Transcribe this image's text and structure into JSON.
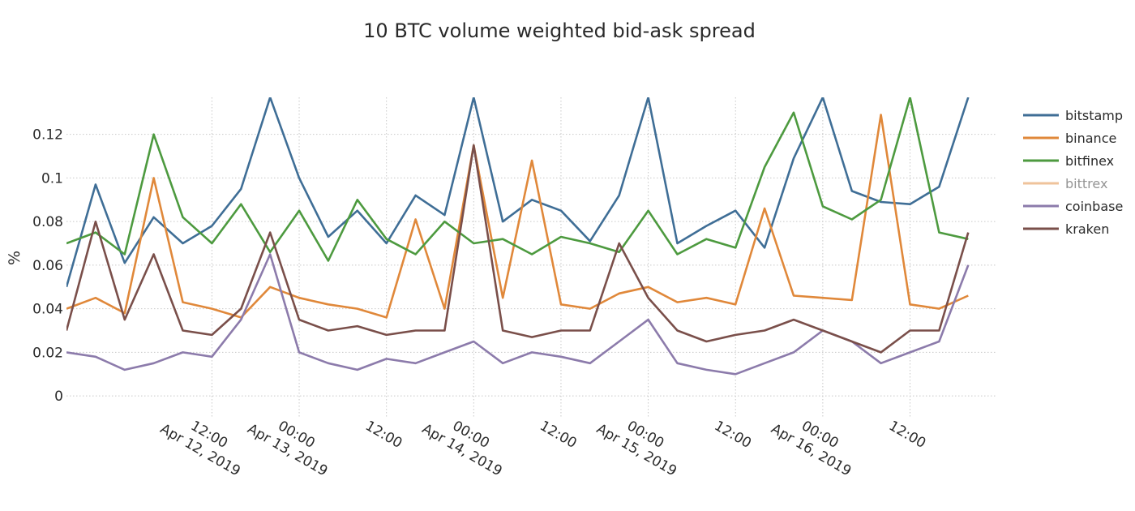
{
  "chart_data": {
    "type": "line",
    "title": "10 BTC volume weighted bid-ask spread",
    "ylabel": "%",
    "xlabel": "",
    "xlim": [
      "2019-04-11 16:00",
      "2019-04-16 23:59"
    ],
    "ylim": [
      -0.01,
      0.137
    ],
    "y_ticks": [
      0,
      0.02,
      0.04,
      0.06,
      0.08,
      0.1,
      0.12
    ],
    "y_tick_labels": [
      "0",
      "0.02",
      "0.04",
      "0.06",
      "0.08",
      "0.1",
      "0.12"
    ],
    "x_ticks": [
      {
        "t": "2019-04-12 12:00",
        "label1": "12:00",
        "label2": "Apr 12, 2019"
      },
      {
        "t": "2019-04-13 00:00",
        "label1": "00:00",
        "label2": "Apr 13, 2019"
      },
      {
        "t": "2019-04-13 12:00",
        "label1": "12:00",
        "label2": ""
      },
      {
        "t": "2019-04-14 00:00",
        "label1": "00:00",
        "label2": "Apr 14, 2019"
      },
      {
        "t": "2019-04-14 12:00",
        "label1": "12:00",
        "label2": ""
      },
      {
        "t": "2019-04-15 00:00",
        "label1": "00:00",
        "label2": "Apr 15, 2019"
      },
      {
        "t": "2019-04-15 12:00",
        "label1": "12:00",
        "label2": ""
      },
      {
        "t": "2019-04-16 00:00",
        "label1": "00:00",
        "label2": "Apr 16, 2019"
      },
      {
        "t": "2019-04-16 12:00",
        "label1": "12:00",
        "label2": ""
      }
    ],
    "grid": true,
    "legend_position": "right",
    "series": [
      {
        "name": "bitstamp",
        "color": "#3f6e96",
        "legend_dimmed": false,
        "x": [
          "2019-04-11 16:00",
          "2019-04-11 20:00",
          "2019-04-12 00:00",
          "2019-04-12 04:00",
          "2019-04-12 08:00",
          "2019-04-12 12:00",
          "2019-04-12 16:00",
          "2019-04-12 20:00",
          "2019-04-13 00:00",
          "2019-04-13 04:00",
          "2019-04-13 08:00",
          "2019-04-13 12:00",
          "2019-04-13 16:00",
          "2019-04-13 20:00",
          "2019-04-14 00:00",
          "2019-04-14 04:00",
          "2019-04-14 08:00",
          "2019-04-14 12:00",
          "2019-04-14 16:00",
          "2019-04-14 20:00",
          "2019-04-15 00:00",
          "2019-04-15 04:00",
          "2019-04-15 08:00",
          "2019-04-15 12:00",
          "2019-04-15 16:00",
          "2019-04-15 20:00",
          "2019-04-16 00:00",
          "2019-04-16 04:00",
          "2019-04-16 08:00",
          "2019-04-16 12:00",
          "2019-04-16 16:00",
          "2019-04-16 20:00"
        ],
        "y": [
          0.05,
          0.097,
          0.061,
          0.082,
          0.07,
          0.078,
          0.095,
          0.137,
          0.1,
          0.073,
          0.085,
          0.07,
          0.092,
          0.083,
          0.137,
          0.08,
          0.09,
          0.085,
          0.071,
          0.092,
          0.137,
          0.07,
          0.078,
          0.085,
          0.068,
          0.109,
          0.137,
          0.094,
          0.089,
          0.088,
          0.096,
          0.137
        ]
      },
      {
        "name": "binance",
        "color": "#e0883a",
        "legend_dimmed": false,
        "x": [
          "2019-04-11 16:00",
          "2019-04-11 20:00",
          "2019-04-12 00:00",
          "2019-04-12 04:00",
          "2019-04-12 08:00",
          "2019-04-12 12:00",
          "2019-04-12 16:00",
          "2019-04-12 20:00",
          "2019-04-13 00:00",
          "2019-04-13 04:00",
          "2019-04-13 08:00",
          "2019-04-13 12:00",
          "2019-04-13 16:00",
          "2019-04-13 20:00",
          "2019-04-14 00:00",
          "2019-04-14 04:00",
          "2019-04-14 08:00",
          "2019-04-14 12:00",
          "2019-04-14 16:00",
          "2019-04-14 20:00",
          "2019-04-15 00:00",
          "2019-04-15 04:00",
          "2019-04-15 08:00",
          "2019-04-15 12:00",
          "2019-04-15 16:00",
          "2019-04-15 20:00",
          "2019-04-16 00:00",
          "2019-04-16 04:00",
          "2019-04-16 08:00",
          "2019-04-16 12:00",
          "2019-04-16 16:00",
          "2019-04-16 20:00"
        ],
        "y": [
          0.04,
          0.045,
          0.038,
          0.1,
          0.043,
          0.04,
          0.036,
          0.05,
          0.045,
          0.042,
          0.04,
          0.036,
          0.081,
          0.04,
          0.115,
          0.045,
          0.108,
          0.042,
          0.04,
          0.047,
          0.05,
          0.043,
          0.045,
          0.042,
          0.086,
          0.046,
          0.045,
          0.044,
          0.129,
          0.042,
          0.04,
          0.046
        ]
      },
      {
        "name": "bitfinex",
        "color": "#4d9a3f",
        "legend_dimmed": false,
        "x": [
          "2019-04-11 16:00",
          "2019-04-11 20:00",
          "2019-04-12 00:00",
          "2019-04-12 04:00",
          "2019-04-12 08:00",
          "2019-04-12 12:00",
          "2019-04-12 16:00",
          "2019-04-12 20:00",
          "2019-04-13 00:00",
          "2019-04-13 04:00",
          "2019-04-13 08:00",
          "2019-04-13 12:00",
          "2019-04-13 16:00",
          "2019-04-13 20:00",
          "2019-04-14 00:00",
          "2019-04-14 04:00",
          "2019-04-14 08:00",
          "2019-04-14 12:00",
          "2019-04-14 16:00",
          "2019-04-14 20:00",
          "2019-04-15 00:00",
          "2019-04-15 04:00",
          "2019-04-15 08:00",
          "2019-04-15 12:00",
          "2019-04-15 16:00",
          "2019-04-15 20:00",
          "2019-04-16 00:00",
          "2019-04-16 04:00",
          "2019-04-16 08:00",
          "2019-04-16 12:00",
          "2019-04-16 16:00",
          "2019-04-16 20:00"
        ],
        "y": [
          0.07,
          0.075,
          0.065,
          0.12,
          0.082,
          0.07,
          0.088,
          0.066,
          0.085,
          0.062,
          0.09,
          0.072,
          0.065,
          0.08,
          0.07,
          0.072,
          0.065,
          0.073,
          0.07,
          0.066,
          0.085,
          0.065,
          0.072,
          0.068,
          0.105,
          0.13,
          0.087,
          0.081,
          0.09,
          0.137,
          0.075,
          0.072
        ]
      },
      {
        "name": "bittrex",
        "color": "#e0883a",
        "legend_dimmed": true,
        "x": [],
        "y": []
      },
      {
        "name": "coinbase",
        "color": "#8c7bab",
        "legend_dimmed": false,
        "x": [
          "2019-04-11 16:00",
          "2019-04-11 20:00",
          "2019-04-12 00:00",
          "2019-04-12 04:00",
          "2019-04-12 08:00",
          "2019-04-12 12:00",
          "2019-04-12 16:00",
          "2019-04-12 20:00",
          "2019-04-13 00:00",
          "2019-04-13 04:00",
          "2019-04-13 08:00",
          "2019-04-13 12:00",
          "2019-04-13 16:00",
          "2019-04-13 20:00",
          "2019-04-14 00:00",
          "2019-04-14 04:00",
          "2019-04-14 08:00",
          "2019-04-14 12:00",
          "2019-04-14 16:00",
          "2019-04-14 20:00",
          "2019-04-15 00:00",
          "2019-04-15 04:00",
          "2019-04-15 08:00",
          "2019-04-15 12:00",
          "2019-04-15 16:00",
          "2019-04-15 20:00",
          "2019-04-16 00:00",
          "2019-04-16 04:00",
          "2019-04-16 08:00",
          "2019-04-16 12:00",
          "2019-04-16 16:00",
          "2019-04-16 20:00"
        ],
        "y": [
          0.02,
          0.018,
          0.012,
          0.015,
          0.02,
          0.018,
          0.035,
          0.065,
          0.02,
          0.015,
          0.012,
          0.017,
          0.015,
          0.02,
          0.025,
          0.015,
          0.02,
          0.018,
          0.015,
          0.025,
          0.035,
          0.015,
          0.012,
          0.01,
          0.015,
          0.02,
          0.03,
          0.025,
          0.015,
          0.02,
          0.025,
          0.06
        ]
      },
      {
        "name": "kraken",
        "color": "#7a4f4a",
        "legend_dimmed": false,
        "x": [
          "2019-04-11 16:00",
          "2019-04-11 20:00",
          "2019-04-12 00:00",
          "2019-04-12 04:00",
          "2019-04-12 08:00",
          "2019-04-12 12:00",
          "2019-04-12 16:00",
          "2019-04-12 20:00",
          "2019-04-13 00:00",
          "2019-04-13 04:00",
          "2019-04-13 08:00",
          "2019-04-13 12:00",
          "2019-04-13 16:00",
          "2019-04-13 20:00",
          "2019-04-14 00:00",
          "2019-04-14 04:00",
          "2019-04-14 08:00",
          "2019-04-14 12:00",
          "2019-04-14 16:00",
          "2019-04-14 20:00",
          "2019-04-15 00:00",
          "2019-04-15 04:00",
          "2019-04-15 08:00",
          "2019-04-15 12:00",
          "2019-04-15 16:00",
          "2019-04-15 20:00",
          "2019-04-16 00:00",
          "2019-04-16 04:00",
          "2019-04-16 08:00",
          "2019-04-16 12:00",
          "2019-04-16 16:00",
          "2019-04-16 20:00"
        ],
        "y": [
          0.03,
          0.08,
          0.035,
          0.065,
          0.03,
          0.028,
          0.04,
          0.075,
          0.035,
          0.03,
          0.032,
          0.028,
          0.03,
          0.03,
          0.115,
          0.03,
          0.027,
          0.03,
          0.03,
          0.07,
          0.045,
          0.03,
          0.025,
          0.028,
          0.03,
          0.035,
          0.03,
          0.025,
          0.02,
          0.03,
          0.03,
          0.075
        ]
      }
    ]
  }
}
